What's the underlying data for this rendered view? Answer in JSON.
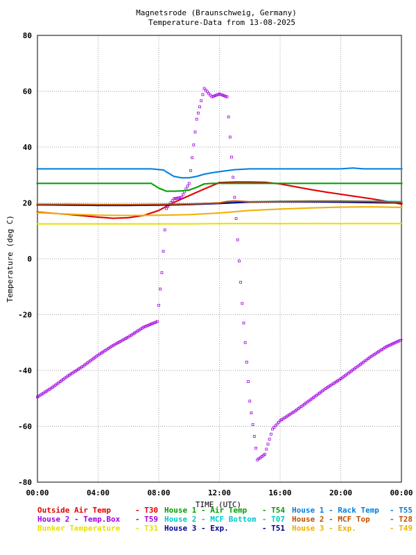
{
  "chart_data": {
    "type": "scatter",
    "title": "Magnetsrode (Braunschweig, Germany)",
    "subtitle": "Temperature-Data from 13-08-2025",
    "xlabel": "TIME (UTC)",
    "ylabel": "Temperature (deg C)",
    "xlim": [
      0,
      24
    ],
    "ylim": [
      -80,
      80
    ],
    "x_ticks": [
      "00:00",
      "04:00",
      "08:00",
      "12:00",
      "16:00",
      "20:00",
      "00:00"
    ],
    "y_ticks": [
      "80",
      "60",
      "40",
      "20",
      "0",
      "-20",
      "-40",
      "-60",
      "-80"
    ],
    "grid": true,
    "legend_placement": "bottom",
    "series": [
      {
        "name": "Outside Air Temp",
        "tag": "T30",
        "color": "#e00000",
        "x": [
          0,
          1,
          2,
          3,
          4,
          5,
          6,
          7,
          8,
          9,
          10,
          11,
          12,
          13,
          14,
          15,
          16,
          17,
          18,
          19,
          20,
          21,
          22,
          23,
          24
        ],
        "y": [
          16.7,
          16.3,
          15.9,
          15.4,
          14.9,
          14.5,
          14.7,
          15.5,
          17.3,
          20.2,
          22.6,
          25.0,
          27.3,
          27.5,
          27.5,
          27.4,
          26.8,
          25.8,
          24.8,
          23.9,
          23.1,
          22.3,
          21.5,
          20.6,
          19.6
        ]
      },
      {
        "name": "House 2 - Temp.Box",
        "tag": "T59",
        "color": "#a000e0",
        "x": [
          0,
          1,
          2,
          3,
          4,
          5,
          6,
          7,
          7.9,
          8.2,
          8.5,
          9,
          9.5,
          10,
          10.5,
          11,
          11.5,
          12,
          12.5,
          13,
          13.5,
          14,
          14.5,
          15,
          15.5,
          16,
          17,
          18,
          19,
          20,
          21,
          22,
          23,
          24
        ],
        "y": [
          -49.5,
          -46,
          -42,
          -38.5,
          -34.5,
          -31,
          -28,
          -24.5,
          -22.5,
          -5,
          18,
          21.5,
          22,
          27,
          50,
          61,
          58,
          59,
          58,
          22,
          -16,
          -51,
          -72,
          -70,
          -61,
          -58,
          -54.5,
          -50.5,
          -46.5,
          -43,
          -39,
          -35,
          -31.5,
          -29
        ]
      },
      {
        "name": "Bunker Temperature",
        "tag": "T31",
        "color": "#e8e000",
        "x": [
          0,
          2,
          4,
          6,
          8,
          10,
          12,
          14,
          16,
          18,
          20,
          22,
          24
        ],
        "y": [
          12.5,
          12.5,
          12.5,
          12.5,
          12.5,
          12.5,
          12.6,
          12.6,
          12.6,
          12.6,
          12.6,
          12.6,
          12.6
        ]
      },
      {
        "name": "House 1 - Air Temp",
        "tag": "T54",
        "color": "#00a000",
        "x": [
          0,
          2,
          4,
          6,
          7.5,
          8,
          8.5,
          9,
          9.5,
          10,
          10.5,
          11,
          11.5,
          12,
          13,
          14,
          16,
          18,
          20,
          22,
          24
        ],
        "y": [
          27,
          27,
          27,
          27,
          27,
          25.3,
          24.2,
          24.2,
          24.3,
          24.6,
          25.6,
          26.8,
          27,
          27,
          27,
          27,
          27,
          27,
          27,
          27,
          27
        ]
      },
      {
        "name": "House 2 - MCF Bottom",
        "tag": "T07",
        "color": "#00c8c8",
        "x": [
          0,
          2,
          4,
          6,
          8,
          10,
          12,
          14,
          16,
          18,
          20,
          22,
          24
        ],
        "y": [
          19.4,
          19.3,
          19.2,
          19.1,
          19.3,
          19.6,
          20,
          20.4,
          20.6,
          20.7,
          20.7,
          20.6,
          20.5
        ]
      },
      {
        "name": "House 3 - Exp.",
        "tag": "T51",
        "color": "#000090",
        "x": [
          0,
          2,
          4,
          6,
          8,
          10,
          12,
          14,
          16,
          18,
          20,
          22,
          24
        ],
        "y": [
          19.3,
          19.2,
          19.1,
          19.1,
          19.2,
          19.4,
          19.8,
          20.3,
          20.4,
          20.4,
          20.3,
          20.1,
          20.0
        ]
      },
      {
        "name": "House 1 - Rack Temp",
        "tag": "T55",
        "color": "#0080e0",
        "x": [
          0,
          2,
          4,
          6,
          7.5,
          8.3,
          9,
          9.5,
          10,
          10.5,
          11,
          11.5,
          12,
          13,
          14,
          16,
          18,
          20,
          20.8,
          21.5,
          22,
          24
        ],
        "y": [
          32.2,
          32.2,
          32.2,
          32.2,
          32.2,
          31.8,
          29.5,
          29,
          29,
          29.5,
          30.3,
          30.8,
          31.2,
          31.9,
          32.2,
          32.2,
          32.2,
          32.2,
          32.5,
          32.2,
          32.2,
          32.2
        ]
      },
      {
        "name": "House 2 - MCF Top",
        "tag": "T28",
        "color": "#c05000",
        "x": [
          0,
          2,
          4,
          6,
          8,
          10,
          12,
          12.5,
          13,
          14,
          16,
          18,
          20,
          22,
          24
        ],
        "y": [
          19.5,
          19.5,
          19.4,
          19.4,
          19.5,
          19.6,
          20,
          20.5,
          20.7,
          20.4,
          20.5,
          20.6,
          20.6,
          20.5,
          20.2
        ]
      },
      {
        "name": "House 3 - Exp.",
        "tag": "T49",
        "color": "#f0b000",
        "x": [
          0,
          2,
          4,
          6,
          8,
          10,
          12,
          14,
          16,
          18,
          20,
          22,
          24
        ],
        "y": [
          16.5,
          16,
          15.6,
          15.5,
          15.6,
          15.8,
          16.4,
          17.3,
          17.8,
          18.2,
          18.5,
          18.6,
          18.4
        ]
      }
    ]
  }
}
